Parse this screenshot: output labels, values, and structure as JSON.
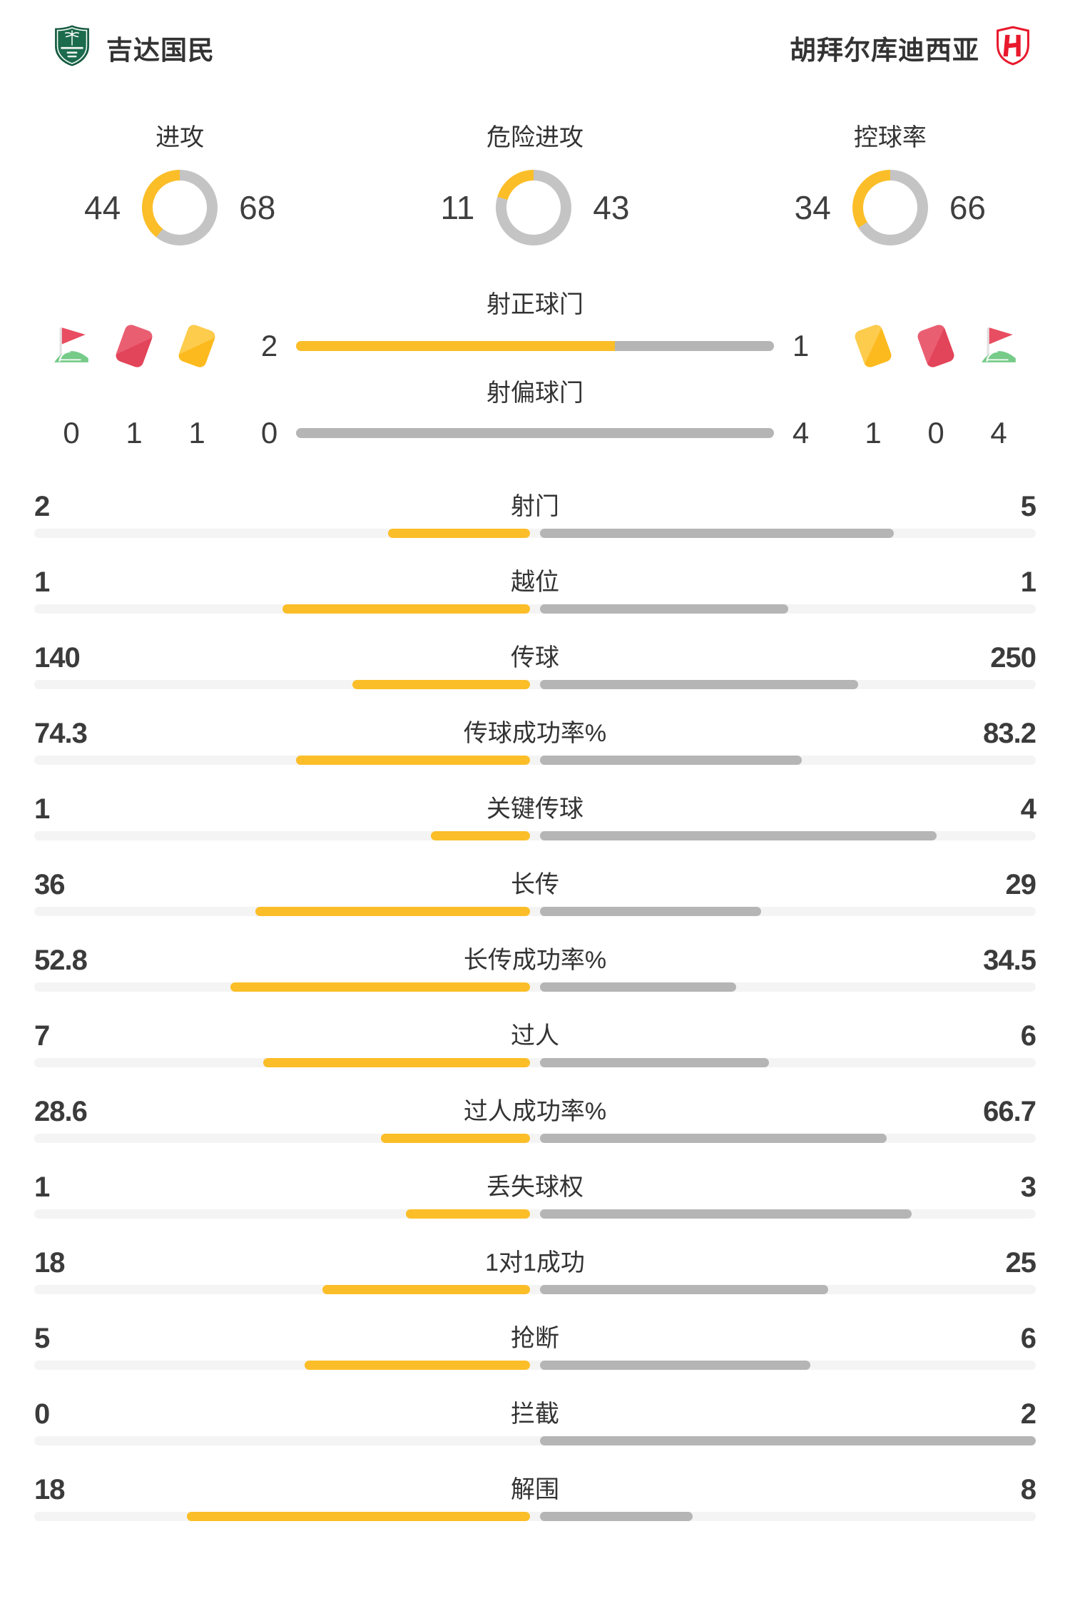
{
  "header": {
    "home_team": "吉达国民",
    "away_team": "胡拜尔库迪西亚"
  },
  "colors": {
    "home_accent": "#FBBE28",
    "away_gray": "#B5B5B5",
    "donut_gray": "#C4C4C4",
    "track_gray": "#F4F4F4",
    "red_card": "#E2485D",
    "yellow_card": "#FCBA1E",
    "corner_flag_red": "#E84D61",
    "corner_flag_green": "#76CB88",
    "home_logo_green": "#1B6B4C",
    "away_logo_red": "#E8192C",
    "text_dark": "#383838"
  },
  "chart_data": {
    "type": "bar",
    "teams": [
      "吉达国民",
      "胡拜尔库迪西亚"
    ],
    "legend_position": "none",
    "donuts": [
      {
        "label": "进攻",
        "home": 44,
        "away": 68
      },
      {
        "label": "危险进攻",
        "home": 11,
        "away": 43
      },
      {
        "label": "控球率",
        "home": 34,
        "away": 66
      }
    ],
    "duels": [
      {
        "label": "射正球门",
        "home": 2,
        "away": 1
      },
      {
        "label": "射偏球门",
        "home": 0,
        "away": 4
      }
    ],
    "discipline": {
      "home": {
        "corners": 0,
        "red_cards": 1,
        "yellow_cards": 1
      },
      "away": {
        "yellow_cards": 1,
        "red_cards": 0,
        "corners": 4
      }
    },
    "stats": [
      {
        "label": "射门",
        "home": 2,
        "away": 5
      },
      {
        "label": "越位",
        "home": 1,
        "away": 1
      },
      {
        "label": "传球",
        "home": 140,
        "away": 250
      },
      {
        "label": "传球成功率%",
        "home": 74.3,
        "away": 83.2
      },
      {
        "label": "关键传球",
        "home": 1,
        "away": 4
      },
      {
        "label": "长传",
        "home": 36,
        "away": 29
      },
      {
        "label": "长传成功率%",
        "home": 52.8,
        "away": 34.5
      },
      {
        "label": "过人",
        "home": 7,
        "away": 6
      },
      {
        "label": "过人成功率%",
        "home": 28.6,
        "away": 66.7
      },
      {
        "label": "丢失球权",
        "home": 1,
        "away": 3
      },
      {
        "label": "1对1成功",
        "home": 18,
        "away": 25
      },
      {
        "label": "抢断",
        "home": 5,
        "away": 6
      },
      {
        "label": "拦截",
        "home": 0,
        "away": 2
      },
      {
        "label": "解围",
        "home": 18,
        "away": 8
      }
    ]
  }
}
